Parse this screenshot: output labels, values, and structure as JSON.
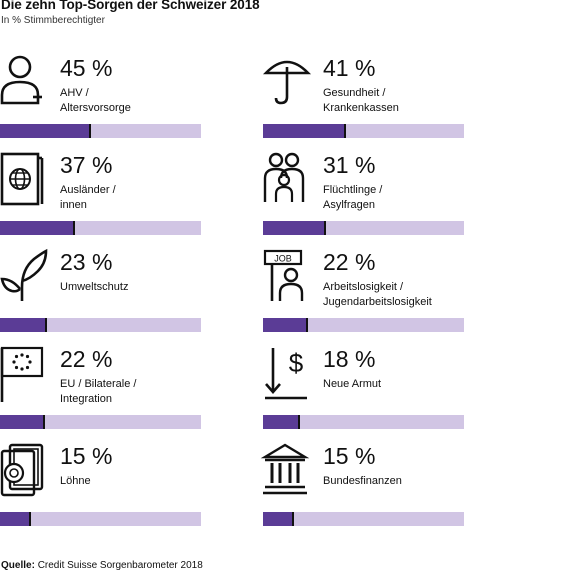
{
  "title": "Die zehn Top-Sorgen der Schweizer 2018",
  "subtitle": "In % Stimmberechtigter",
  "source_label": "Quelle:",
  "source_text": "Credit Suisse Sorgenbarometer 2018",
  "colors": {
    "fill": "#5b3c96",
    "track": "#d1c5e4",
    "text": "#111111"
  },
  "items": [
    {
      "pct": "45 %",
      "label": "AHV /\nAltersvorsorge",
      "icon": "person-icon"
    },
    {
      "pct": "41 %",
      "label": "Gesundheit /\nKrankenkassen",
      "icon": "umbrella-icon"
    },
    {
      "pct": "37 %",
      "label": "Ausländer /\ninnen",
      "icon": "passport-icon"
    },
    {
      "pct": "31 %",
      "label": "Flüchtlinge /\nAsylfragen",
      "icon": "family-icon"
    },
    {
      "pct": "23 %",
      "label": "Umweltschutz",
      "icon": "plant-icon"
    },
    {
      "pct": "22 %",
      "label": "Arbeitslosigkeit /\nJugendarbeitslosigkeit",
      "icon": "job-sign-icon",
      "icon_text": "JOB"
    },
    {
      "pct": "22 %",
      "label": "EU / Bilaterale /\nIntegration",
      "icon": "eu-flag-icon"
    },
    {
      "pct": "18 %",
      "label": "Neue Armut",
      "icon": "dollar-down-icon",
      "icon_text": "$"
    },
    {
      "pct": "15 %",
      "label": "Löhne",
      "icon": "money-icon"
    },
    {
      "pct": "15 %",
      "label": "Bundesfinanzen",
      "icon": "government-building-icon"
    }
  ],
  "chart_data": {
    "type": "bar",
    "title": "Die zehn Top-Sorgen der Schweizer 2018",
    "subtitle": "In % Stimmberechtigter",
    "categories": [
      "AHV / Altersvorsorge",
      "Gesundheit / Krankenkassen",
      "Ausländer / innen",
      "Flüchtlinge / Asylfragen",
      "Umweltschutz",
      "Arbeitslosigkeit / Jugendarbeitslosigkeit",
      "EU / Bilaterale / Integration",
      "Neue Armut",
      "Löhne",
      "Bundesfinanzen"
    ],
    "values": [
      45,
      41,
      37,
      31,
      23,
      22,
      22,
      18,
      15,
      15
    ],
    "ylim": [
      0,
      100
    ]
  }
}
